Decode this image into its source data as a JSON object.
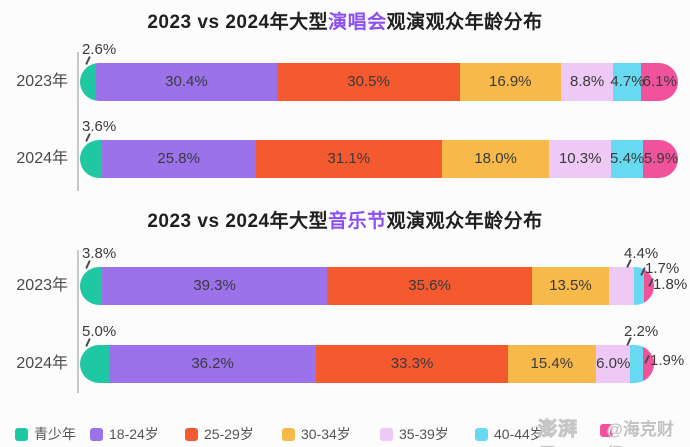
{
  "page": {
    "background": "#fcfcfc"
  },
  "watermark": {
    "platform": "澎湃号",
    "handle": "@海克财经"
  },
  "legend": {
    "items": [
      {
        "label": "青少年",
        "color": "#1fc7a2"
      },
      {
        "label": "18-24岁",
        "color": "#9b72e9"
      },
      {
        "label": "25-29岁",
        "color": "#f5592f"
      },
      {
        "label": "30-34岁",
        "color": "#f8b94b"
      },
      {
        "label": "35-39岁",
        "color": "#eec9f5"
      },
      {
        "label": "40-44岁",
        "color": "#67d9f0"
      },
      {
        "label": "",
        "color": "#f0529c"
      }
    ]
  },
  "chart_data": [
    {
      "type": "bar",
      "subtype": "stacked-horizontal-100percent",
      "title": {
        "prefix": "2023 vs 2024年大型",
        "highlight": "演唱会",
        "suffix": "观演观众年龄分布",
        "highlight_color": "#8b4ff2"
      },
      "unit": "%",
      "xlim": [
        0,
        100
      ],
      "grid": false,
      "categories": [
        "青少年",
        "18-24岁",
        "25-29岁",
        "30-34岁",
        "35-39岁",
        "40-44岁",
        ""
      ],
      "series": [
        {
          "name": "2023年",
          "values": [
            2.6,
            30.4,
            30.5,
            16.9,
            8.8,
            4.7,
            6.1
          ]
        },
        {
          "name": "2024年",
          "values": [
            3.6,
            25.8,
            31.1,
            18.0,
            10.3,
            5.4,
            5.9
          ]
        }
      ],
      "label_modes": [
        [
          "above",
          "in",
          "in",
          "in",
          "in",
          "in",
          "in"
        ],
        [
          "above",
          "in",
          "in",
          "in",
          "in",
          "in",
          "in"
        ]
      ]
    },
    {
      "type": "bar",
      "subtype": "stacked-horizontal-100percent",
      "title": {
        "prefix": "2023 vs 2024年大型",
        "highlight": "音乐节",
        "suffix": "观演观众年龄分布",
        "highlight_color": "#8b4ff2"
      },
      "unit": "%",
      "xlim": [
        0,
        100
      ],
      "grid": false,
      "categories": [
        "青少年",
        "18-24岁",
        "25-29岁",
        "30-34岁",
        "35-39岁",
        "40-44岁",
        ""
      ],
      "series": [
        {
          "name": "2023年",
          "values": [
            3.8,
            39.3,
            35.6,
            13.5,
            4.4,
            1.7,
            1.8
          ]
        },
        {
          "name": "2024年",
          "values": [
            5.0,
            36.2,
            33.3,
            15.4,
            6.0,
            2.2,
            1.9
          ]
        }
      ],
      "label_modes": [
        [
          "above",
          "in",
          "in",
          "in",
          "c0",
          "c1",
          "c2"
        ],
        [
          "above",
          "in",
          "in",
          "in",
          "in",
          "c0",
          "c3"
        ]
      ]
    }
  ]
}
